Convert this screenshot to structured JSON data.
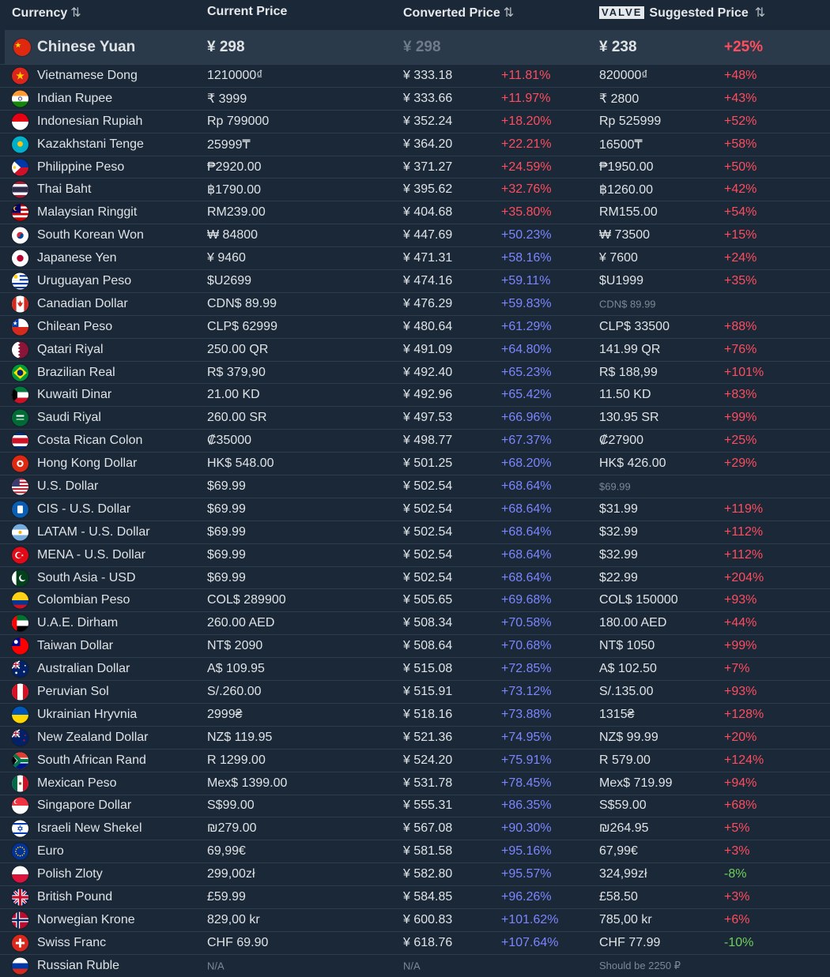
{
  "headers": {
    "currency": "Currency",
    "current": "Current Price",
    "converted": "Converted Price",
    "valve_badge": "VALVE",
    "suggested": "Suggested Price",
    "sort_icon": "⇅"
  },
  "base": {
    "name": "Chinese Yuan",
    "flag": "cn",
    "current": "¥ 298",
    "converted": "¥ 298",
    "suggested": "¥ 238",
    "suggested_pct": "+25%"
  },
  "colors": {
    "over": "#ff4d5e",
    "under": "#7b86ff",
    "negative": "#6fcf5b",
    "background": "#1b2838",
    "highlight": "#2a3a4b"
  },
  "rows": [
    {
      "name": "Vietnamese Dong",
      "flag": "vn",
      "current": "1210000₫",
      "converted": "¥ 333.18",
      "diff": "+11.81%",
      "diff_color": "red",
      "suggested": "820000₫",
      "pct": "+48%",
      "pct_color": "red"
    },
    {
      "name": "Indian Rupee",
      "flag": "in",
      "current": "₹ 3999",
      "converted": "¥ 333.66",
      "diff": "+11.97%",
      "diff_color": "red",
      "suggested": "₹ 2800",
      "pct": "+43%",
      "pct_color": "red"
    },
    {
      "name": "Indonesian Rupiah",
      "flag": "id",
      "current": "Rp 799000",
      "converted": "¥ 352.24",
      "diff": "+18.20%",
      "diff_color": "red",
      "suggested": "Rp 525999",
      "pct": "+52%",
      "pct_color": "red"
    },
    {
      "name": "Kazakhstani Tenge",
      "flag": "kz",
      "current": "25999₸",
      "converted": "¥ 364.20",
      "diff": "+22.21%",
      "diff_color": "red",
      "suggested": "16500₸",
      "pct": "+58%",
      "pct_color": "red"
    },
    {
      "name": "Philippine Peso",
      "flag": "ph",
      "current": "₱2920.00",
      "converted": "¥ 371.27",
      "diff": "+24.59%",
      "diff_color": "red",
      "suggested": "₱1950.00",
      "pct": "+50%",
      "pct_color": "red"
    },
    {
      "name": "Thai Baht",
      "flag": "th",
      "current": "฿1790.00",
      "converted": "¥ 395.62",
      "diff": "+32.76%",
      "diff_color": "red",
      "suggested": "฿1260.00",
      "pct": "+42%",
      "pct_color": "red"
    },
    {
      "name": "Malaysian Ringgit",
      "flag": "my",
      "current": "RM239.00",
      "converted": "¥ 404.68",
      "diff": "+35.80%",
      "diff_color": "red",
      "suggested": "RM155.00",
      "pct": "+54%",
      "pct_color": "red"
    },
    {
      "name": "South Korean Won",
      "flag": "kr",
      "current": "₩ 84800",
      "converted": "¥ 447.69",
      "diff": "+50.23%",
      "diff_color": "blue",
      "suggested": "₩ 73500",
      "pct": "+15%",
      "pct_color": "red"
    },
    {
      "name": "Japanese Yen",
      "flag": "jp",
      "current": "¥ 9460",
      "converted": "¥ 471.31",
      "diff": "+58.16%",
      "diff_color": "blue",
      "suggested": "¥ 7600",
      "pct": "+24%",
      "pct_color": "red"
    },
    {
      "name": "Uruguayan Peso",
      "flag": "uy",
      "current": "$U2699",
      "converted": "¥ 474.16",
      "diff": "+59.11%",
      "diff_color": "blue",
      "suggested": "$U1999",
      "pct": "+35%",
      "pct_color": "red"
    },
    {
      "name": "Canadian Dollar",
      "flag": "ca",
      "current": "CDN$ 89.99",
      "converted": "¥ 476.29",
      "diff": "+59.83%",
      "diff_color": "blue",
      "suggested": "CDN$ 89.99",
      "suggested_muted": true,
      "pct": "",
      "pct_color": "red"
    },
    {
      "name": "Chilean Peso",
      "flag": "cl",
      "current": "CLP$ 62999",
      "converted": "¥ 480.64",
      "diff": "+61.29%",
      "diff_color": "blue",
      "suggested": "CLP$ 33500",
      "pct": "+88%",
      "pct_color": "red"
    },
    {
      "name": "Qatari Riyal",
      "flag": "qa",
      "current": "250.00 QR",
      "converted": "¥ 491.09",
      "diff": "+64.80%",
      "diff_color": "blue",
      "suggested": "141.99 QR",
      "pct": "+76%",
      "pct_color": "red"
    },
    {
      "name": "Brazilian Real",
      "flag": "br",
      "current": "R$ 379,90",
      "converted": "¥ 492.40",
      "diff": "+65.23%",
      "diff_color": "blue",
      "suggested": "R$ 188,99",
      "pct": "+101%",
      "pct_color": "red"
    },
    {
      "name": "Kuwaiti Dinar",
      "flag": "kw",
      "current": "21.00 KD",
      "converted": "¥ 492.96",
      "diff": "+65.42%",
      "diff_color": "blue",
      "suggested": "11.50 KD",
      "pct": "+83%",
      "pct_color": "red"
    },
    {
      "name": "Saudi Riyal",
      "flag": "sa",
      "current": "260.00 SR",
      "converted": "¥ 497.53",
      "diff": "+66.96%",
      "diff_color": "blue",
      "suggested": "130.95 SR",
      "pct": "+99%",
      "pct_color": "red"
    },
    {
      "name": "Costa Rican Colon",
      "flag": "cr",
      "current": "₡35000",
      "converted": "¥ 498.77",
      "diff": "+67.37%",
      "diff_color": "blue",
      "suggested": "₡27900",
      "pct": "+25%",
      "pct_color": "red"
    },
    {
      "name": "Hong Kong Dollar",
      "flag": "hk",
      "current": "HK$ 548.00",
      "converted": "¥ 501.25",
      "diff": "+68.20%",
      "diff_color": "blue",
      "suggested": "HK$ 426.00",
      "pct": "+29%",
      "pct_color": "red"
    },
    {
      "name": "U.S. Dollar",
      "flag": "us",
      "current": "$69.99",
      "converted": "¥ 502.54",
      "diff": "+68.64%",
      "diff_color": "blue",
      "suggested": "$69.99",
      "suggested_muted": true,
      "pct": "",
      "pct_color": "red"
    },
    {
      "name": "CIS - U.S. Dollar",
      "flag": "cis",
      "current": "$69.99",
      "converted": "¥ 502.54",
      "diff": "+68.64%",
      "diff_color": "blue",
      "suggested": "$31.99",
      "pct": "+119%",
      "pct_color": "red"
    },
    {
      "name": "LATAM - U.S. Dollar",
      "flag": "ar",
      "current": "$69.99",
      "converted": "¥ 502.54",
      "diff": "+68.64%",
      "diff_color": "blue",
      "suggested": "$32.99",
      "pct": "+112%",
      "pct_color": "red"
    },
    {
      "name": "MENA - U.S. Dollar",
      "flag": "tr",
      "current": "$69.99",
      "converted": "¥ 502.54",
      "diff": "+68.64%",
      "diff_color": "blue",
      "suggested": "$32.99",
      "pct": "+112%",
      "pct_color": "red"
    },
    {
      "name": "South Asia - USD",
      "flag": "pk",
      "current": "$69.99",
      "converted": "¥ 502.54",
      "diff": "+68.64%",
      "diff_color": "blue",
      "suggested": "$22.99",
      "pct": "+204%",
      "pct_color": "red"
    },
    {
      "name": "Colombian Peso",
      "flag": "co",
      "current": "COL$ 289900",
      "converted": "¥ 505.65",
      "diff": "+69.68%",
      "diff_color": "blue",
      "suggested": "COL$ 150000",
      "pct": "+93%",
      "pct_color": "red"
    },
    {
      "name": "U.A.E. Dirham",
      "flag": "ae",
      "current": "260.00 AED",
      "converted": "¥ 508.34",
      "diff": "+70.58%",
      "diff_color": "blue",
      "suggested": "180.00 AED",
      "pct": "+44%",
      "pct_color": "red"
    },
    {
      "name": "Taiwan Dollar",
      "flag": "tw",
      "current": "NT$ 2090",
      "converted": "¥ 508.64",
      "diff": "+70.68%",
      "diff_color": "blue",
      "suggested": "NT$ 1050",
      "pct": "+99%",
      "pct_color": "red"
    },
    {
      "name": "Australian Dollar",
      "flag": "au",
      "current": "A$ 109.95",
      "converted": "¥ 515.08",
      "diff": "+72.85%",
      "diff_color": "blue",
      "suggested": "A$ 102.50",
      "pct": "+7%",
      "pct_color": "red"
    },
    {
      "name": "Peruvian Sol",
      "flag": "pe",
      "current": "S/.260.00",
      "converted": "¥ 515.91",
      "diff": "+73.12%",
      "diff_color": "blue",
      "suggested": "S/.135.00",
      "pct": "+93%",
      "pct_color": "red"
    },
    {
      "name": "Ukrainian Hryvnia",
      "flag": "ua",
      "current": "2999₴",
      "converted": "¥ 518.16",
      "diff": "+73.88%",
      "diff_color": "blue",
      "suggested": "1315₴",
      "pct": "+128%",
      "pct_color": "red"
    },
    {
      "name": "New Zealand Dollar",
      "flag": "nz",
      "current": "NZ$ 119.95",
      "converted": "¥ 521.36",
      "diff": "+74.95%",
      "diff_color": "blue",
      "suggested": "NZ$ 99.99",
      "pct": "+20%",
      "pct_color": "red"
    },
    {
      "name": "South African Rand",
      "flag": "za",
      "current": "R 1299.00",
      "converted": "¥ 524.20",
      "diff": "+75.91%",
      "diff_color": "blue",
      "suggested": "R 579.00",
      "pct": "+124%",
      "pct_color": "red"
    },
    {
      "name": "Mexican Peso",
      "flag": "mx",
      "current": "Mex$ 1399.00",
      "converted": "¥ 531.78",
      "diff": "+78.45%",
      "diff_color": "blue",
      "suggested": "Mex$ 719.99",
      "pct": "+94%",
      "pct_color": "red"
    },
    {
      "name": "Singapore Dollar",
      "flag": "sg",
      "current": "S$99.00",
      "converted": "¥ 555.31",
      "diff": "+86.35%",
      "diff_color": "blue",
      "suggested": "S$59.00",
      "pct": "+68%",
      "pct_color": "red"
    },
    {
      "name": "Israeli New Shekel",
      "flag": "il",
      "current": "₪279.00",
      "converted": "¥ 567.08",
      "diff": "+90.30%",
      "diff_color": "blue",
      "suggested": "₪264.95",
      "pct": "+5%",
      "pct_color": "red"
    },
    {
      "name": "Euro",
      "flag": "eu",
      "current": "69,99€",
      "converted": "¥ 581.58",
      "diff": "+95.16%",
      "diff_color": "blue",
      "suggested": "67,99€",
      "pct": "+3%",
      "pct_color": "red"
    },
    {
      "name": "Polish Zloty",
      "flag": "pl",
      "current": "299,00zł",
      "converted": "¥ 582.80",
      "diff": "+95.57%",
      "diff_color": "blue",
      "suggested": "324,99zł",
      "pct": "-8%",
      "pct_color": "green"
    },
    {
      "name": "British Pound",
      "flag": "gb",
      "current": "£59.99",
      "converted": "¥ 584.85",
      "diff": "+96.26%",
      "diff_color": "blue",
      "suggested": "£58.50",
      "pct": "+3%",
      "pct_color": "red"
    },
    {
      "name": "Norwegian Krone",
      "flag": "no",
      "current": "829,00 kr",
      "converted": "¥ 600.83",
      "diff": "+101.62%",
      "diff_color": "blue",
      "suggested": "785,00 kr",
      "pct": "+6%",
      "pct_color": "red"
    },
    {
      "name": "Swiss Franc",
      "flag": "ch",
      "current": "CHF 69.90",
      "converted": "¥ 618.76",
      "diff": "+107.64%",
      "diff_color": "blue",
      "suggested": "CHF 77.99",
      "pct": "-10%",
      "pct_color": "green"
    },
    {
      "name": "Russian Ruble",
      "flag": "ru",
      "current": "N/A",
      "current_muted": true,
      "converted": "N/A",
      "converted_muted": true,
      "diff": "",
      "diff_color": "red",
      "suggested": "Should be 2250 ₽",
      "suggested_muted": true,
      "pct": "",
      "pct_color": "red"
    }
  ]
}
